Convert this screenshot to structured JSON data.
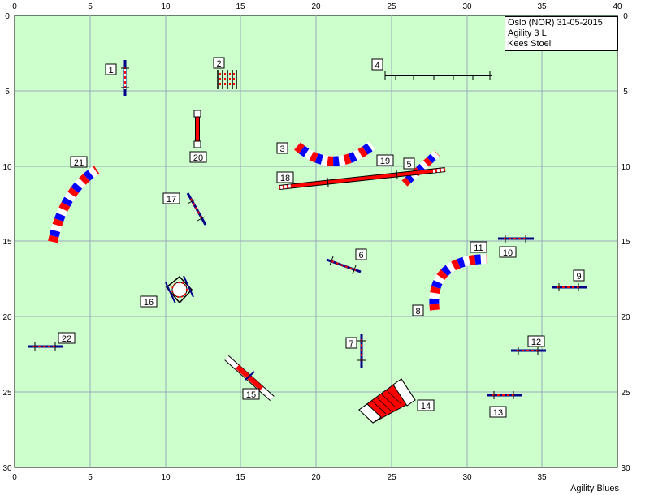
{
  "course": {
    "location": "Oslo (NOR) 31-05-2015",
    "class": "Agility 3 L",
    "judge": "Kees Stoel"
  },
  "footer": {
    "brand": "Agility Blues"
  },
  "axes": {
    "x_ticks": [
      "0",
      "5",
      "10",
      "15",
      "20",
      "25",
      "30",
      "35",
      "40"
    ],
    "y_ticks": [
      "0",
      "5",
      "10",
      "15",
      "20",
      "25",
      "30"
    ]
  },
  "colors": {
    "field": "#ccffcc",
    "grid": "#9aaab9",
    "red": "#ff0000",
    "blue": "#0000ff",
    "white": "#ffffff"
  },
  "obstacles": [
    {
      "num": "1",
      "type": "jump"
    },
    {
      "num": "2",
      "type": "wall"
    },
    {
      "num": "3",
      "type": "tunnel"
    },
    {
      "num": "4",
      "type": "dogwalk"
    },
    {
      "num": "5",
      "type": "tunnel"
    },
    {
      "num": "6",
      "type": "jump"
    },
    {
      "num": "7",
      "type": "jump"
    },
    {
      "num": "8",
      "type": "tunnel"
    },
    {
      "num": "9",
      "type": "jump"
    },
    {
      "num": "10",
      "type": "jump"
    },
    {
      "num": "11",
      "type": "tunnel"
    },
    {
      "num": "12",
      "type": "jump"
    },
    {
      "num": "13",
      "type": "jump"
    },
    {
      "num": "14",
      "type": "a-frame"
    },
    {
      "num": "15",
      "type": "seesaw"
    },
    {
      "num": "16",
      "type": "tyre"
    },
    {
      "num": "17",
      "type": "jump"
    },
    {
      "num": "18",
      "type": "dogwalk"
    },
    {
      "num": "19",
      "type": "dogwalk"
    },
    {
      "num": "20",
      "type": "weave"
    },
    {
      "num": "21",
      "type": "tunnel"
    },
    {
      "num": "22",
      "type": "jump"
    }
  ]
}
